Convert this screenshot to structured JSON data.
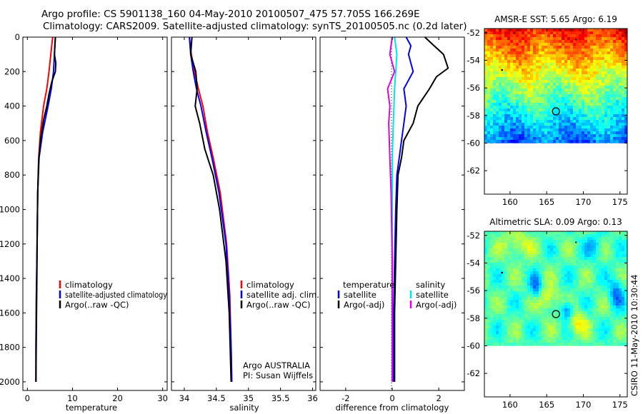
{
  "header": {
    "line1": "Argo profile: CS 5901138_160 04-May-2010 20100507_475 57.705S 166.269E",
    "line2": "Climatology: CARS2009. Satellite-adjusted climatology: synTS_20100505.nc (0.2d later)"
  },
  "side_text": "CSIRO 11-May-2010 10:30:44",
  "chart_data": [
    {
      "id": "temperature",
      "type": "line",
      "xlabel": "temperature",
      "xlim": [
        -1,
        31
      ],
      "xticks": [
        "0",
        "10",
        "20",
        "30"
      ],
      "ylim": [
        2050,
        0
      ],
      "yticks": [
        "0",
        "200",
        "400",
        "600",
        "800",
        "1000",
        "1200",
        "1400",
        "1600",
        "1800",
        "2000"
      ],
      "legend": [
        "climatology",
        "satellite-adjusted climatology",
        "Argo(..raw -QC)"
      ],
      "series": [
        {
          "name": "climatology",
          "color": "#ff0000",
          "x": [
            5.6,
            5.2,
            4.8,
            4.3,
            3.6,
            2.9,
            2.5,
            2.3,
            2.2,
            2.1,
            2.0,
            1.9,
            1.9
          ],
          "y": [
            0,
            100,
            200,
            300,
            400,
            550,
            700,
            900,
            1100,
            1300,
            1500,
            1800,
            2000
          ]
        },
        {
          "name": "satellite-adjusted climatology",
          "color": "#0000ff",
          "x": [
            6.2,
            6.0,
            5.8,
            5.3,
            4.6,
            3.4,
            2.6,
            2.3,
            2.2,
            2.1,
            2.0,
            1.9,
            1.9
          ],
          "y": [
            0,
            100,
            200,
            300,
            400,
            550,
            700,
            900,
            1100,
            1300,
            1500,
            1800,
            2000
          ]
        },
        {
          "name": "Argo(..raw -QC)",
          "color": "#000000",
          "x": [
            6.2,
            6.1,
            6.0,
            6.3,
            6.2,
            5.4,
            4.8,
            4.3,
            3.6,
            2.9,
            2.5,
            2.3,
            2.2,
            2.1,
            2.0,
            1.9
          ],
          "y": [
            0,
            50,
            100,
            150,
            200,
            260,
            330,
            400,
            480,
            600,
            720,
            900,
            1100,
            1400,
            1700,
            2000
          ]
        }
      ]
    },
    {
      "id": "salinity",
      "type": "line",
      "xlabel": "salinity",
      "xlim": [
        33.8,
        36.05
      ],
      "xticks": [
        "34",
        "34.5",
        "35",
        "35.5",
        "36"
      ],
      "ylim": [
        2050,
        0
      ],
      "legend": [
        "climatology",
        "satellite adj. clim.",
        "Argo(..raw -QC)"
      ],
      "annotation": [
        "Argo AUSTRALIA",
        "PI: Susan Wijffels"
      ],
      "series": [
        {
          "name": "climatology",
          "color": "#ff0000",
          "x": [
            34.08,
            34.11,
            34.16,
            34.22,
            34.29,
            34.36,
            34.45,
            34.56,
            34.66,
            34.71,
            34.73,
            34.74
          ],
          "y": [
            0,
            100,
            200,
            300,
            400,
            550,
            700,
            900,
            1200,
            1500,
            1800,
            2000
          ]
        },
        {
          "name": "satellite adj. clim.",
          "color": "#0000ff",
          "x": [
            34.08,
            34.1,
            34.14,
            34.19,
            34.26,
            34.34,
            34.43,
            34.54,
            34.65,
            34.7,
            34.73,
            34.74
          ],
          "y": [
            0,
            100,
            200,
            300,
            400,
            550,
            700,
            900,
            1200,
            1500,
            1800,
            2000
          ]
        },
        {
          "name": "Argo(..raw -QC)",
          "color": "#000000",
          "x": [
            34.12,
            34.1,
            34.18,
            34.2,
            34.17,
            34.24,
            34.32,
            34.45,
            34.55,
            34.65,
            34.7,
            34.73
          ],
          "y": [
            0,
            100,
            200,
            300,
            400,
            500,
            650,
            800,
            1000,
            1300,
            1600,
            2000
          ]
        }
      ]
    },
    {
      "id": "difference",
      "type": "line",
      "xlabel": "difference from climatology",
      "xlim": [
        -3.1,
        3.1
      ],
      "xticks": [
        "-2",
        "0",
        "2"
      ],
      "ylim": [
        2050,
        0
      ],
      "legend_groups": [
        {
          "title": "temperature",
          "items": [
            "satellite",
            "Argo(-adj)"
          ]
        },
        {
          "title": "salinity",
          "items": [
            "satellite",
            "Argo(-adj)"
          ]
        }
      ],
      "series": [
        {
          "name": "temperature satellite",
          "color": "#0000ff",
          "x": [
            0.6,
            0.8,
            0.7,
            0.9,
            0.5,
            0.6,
            0.5,
            0.4,
            0.3,
            0.2,
            0.15,
            0.1,
            0.05,
            0.05
          ],
          "y": [
            0,
            50,
            100,
            200,
            300,
            400,
            500,
            600,
            700,
            800,
            1000,
            1300,
            1700,
            2000
          ]
        },
        {
          "name": "temperature Argo(-adj)",
          "color": "#000000",
          "x": [
            1.4,
            1.8,
            2.2,
            2.4,
            1.9,
            1.6,
            1.1,
            0.9,
            0.5,
            0.4,
            0.25,
            0.2,
            0.15,
            0.1,
            0.1
          ],
          "y": [
            0,
            50,
            100,
            180,
            230,
            300,
            400,
            500,
            600,
            700,
            800,
            1000,
            1300,
            1600,
            2000
          ]
        },
        {
          "name": "salinity satellite",
          "color": "#00e5e5",
          "x": [
            0.1,
            0.2,
            0.15,
            0.1,
            0.05,
            0.0,
            0.0,
            0.0,
            0.0
          ],
          "y": [
            0,
            100,
            200,
            300,
            500,
            700,
            1000,
            1500,
            2000
          ]
        },
        {
          "name": "salinity Argo(-adj)",
          "color": "#e000e0",
          "x": [
            0.0,
            -0.1,
            0.1,
            -0.2,
            -0.1,
            -0.15,
            -0.1,
            -0.05,
            0.0,
            0.0
          ],
          "y": [
            0,
            100,
            200,
            300,
            400,
            500,
            700,
            900,
            1300,
            2000
          ]
        }
      ]
    },
    {
      "id": "sst_map",
      "type": "heatmap",
      "title": "AMSR-E SST: 5.65 Argo: 6.19",
      "xticks": [
        "160",
        "165",
        "170",
        "175"
      ],
      "yticks": [
        "-52",
        "-54",
        "-56",
        "-58",
        "-60",
        "-62"
      ],
      "xlim": [
        156.5,
        176
      ],
      "ylim": [
        -63.7,
        -51.7
      ],
      "data_lat_min": -60,
      "argo_position": {
        "lon": 166.27,
        "lat": -57.7
      }
    },
    {
      "id": "sla_map",
      "type": "heatmap",
      "title": "Altimetric SLA: 0.09 Argo: 0.13",
      "xticks": [
        "160",
        "165",
        "170",
        "175"
      ],
      "yticks": [
        "-52",
        "-54",
        "-56",
        "-58",
        "-60",
        "-62"
      ],
      "xlim": [
        156.5,
        176
      ],
      "ylim": [
        -63.7,
        -51.7
      ],
      "data_lat_min": -60,
      "argo_position": {
        "lon": 166.27,
        "lat": -57.7
      }
    }
  ]
}
